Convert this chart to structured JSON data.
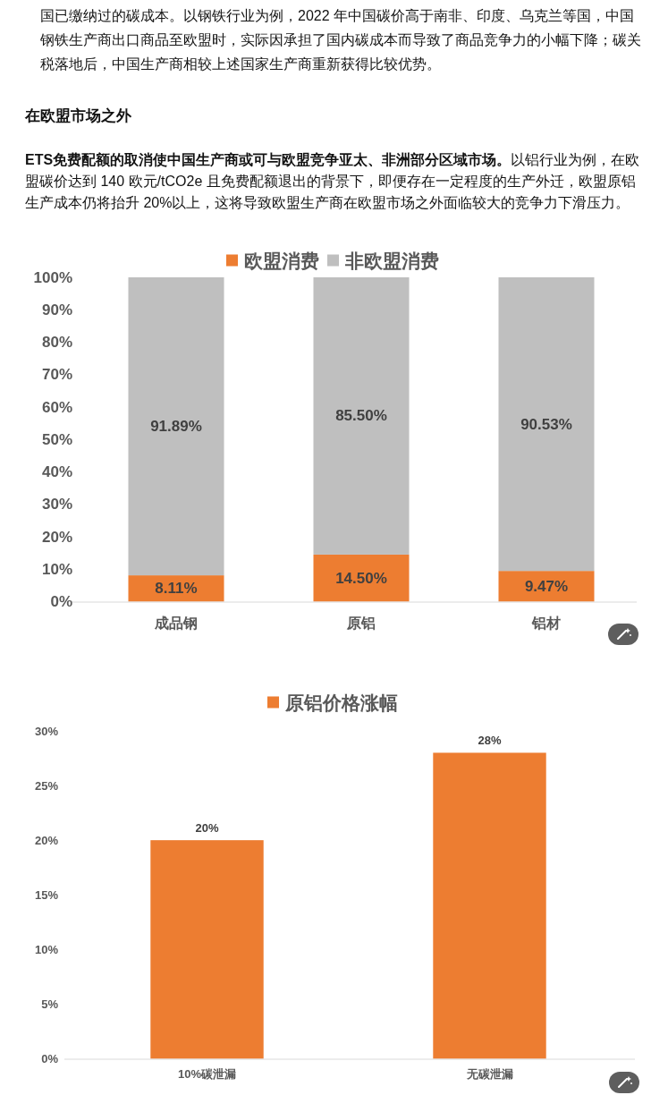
{
  "chart_data": [
    {
      "type": "bar",
      "stacked": true,
      "annotations": [
        "国已缴纳过的碳成本。以钢铁行业为例，2022 年中国碳价高于南非、印度、乌克兰等国，中国钢铁生产商出口商品至欧盟时，实际因承担了国内碳成本而导致了商品竞争力的小幅下降；碳关税落地后，中国生产商相较上述国家生产商重新获得比较优势。",
        "在欧盟市场之外",
        "ETS免费配额的取消使中国生产商或可与欧盟竞争亚太、非洲部分区域市场。",
        "以铝行业为例，在欧盟碳价达到 140 欧元/tCO2e 且免费配额退出的背景下，即便存在一定程度的生产外迁，欧盟原铝生产成本仍将抬升 20%以上，这将导致欧盟生产商在欧盟市场之外面临较大的竞争力下滑压力。"
      ],
      "categories": [
        "成品钢",
        "原铝",
        "铝材"
      ],
      "series": [
        {
          "name": "欧盟消费",
          "color": "#ed7d31",
          "values": [
            8.11,
            14.5,
            9.47
          ],
          "value_labels": [
            "8.11%",
            "14.50%",
            "9.47%"
          ]
        },
        {
          "name": "非欧盟消费",
          "color": "#bfbfbf",
          "values": [
            91.89,
            85.5,
            90.53
          ],
          "value_labels": [
            "91.89%",
            "85.50%",
            "90.53%"
          ]
        }
      ],
      "ylim": [
        0,
        100
      ],
      "yticks": [
        {
          "value": 0,
          "label": "0%"
        },
        {
          "value": 10,
          "label": "10%"
        },
        {
          "value": 20,
          "label": "20%"
        },
        {
          "value": 30,
          "label": "30%"
        },
        {
          "value": 40,
          "label": "40%"
        },
        {
          "value": 50,
          "label": "50%"
        },
        {
          "value": 60,
          "label": "60%"
        },
        {
          "value": 70,
          "label": "70%"
        },
        {
          "value": 80,
          "label": "80%"
        },
        {
          "value": 90,
          "label": "90%"
        },
        {
          "value": 100,
          "label": "100%"
        }
      ],
      "legend": "top"
    },
    {
      "type": "bar",
      "categories": [
        "10%碳泄漏",
        "无碳泄漏"
      ],
      "series": [
        {
          "name": "原铝价格涨幅",
          "color": "#ed7d31",
          "values": [
            20,
            28
          ],
          "value_labels": [
            "20%",
            "28%"
          ]
        }
      ],
      "ylim": [
        0,
        30
      ],
      "yticks": [
        {
          "value": 0,
          "label": "0%"
        },
        {
          "value": 5,
          "label": "5%"
        },
        {
          "value": 10,
          "label": "10%"
        },
        {
          "value": 15,
          "label": "15%"
        },
        {
          "value": 20,
          "label": "20%"
        },
        {
          "value": 25,
          "label": "25%"
        },
        {
          "value": 30,
          "label": "30%"
        }
      ],
      "legend": "top"
    }
  ]
}
